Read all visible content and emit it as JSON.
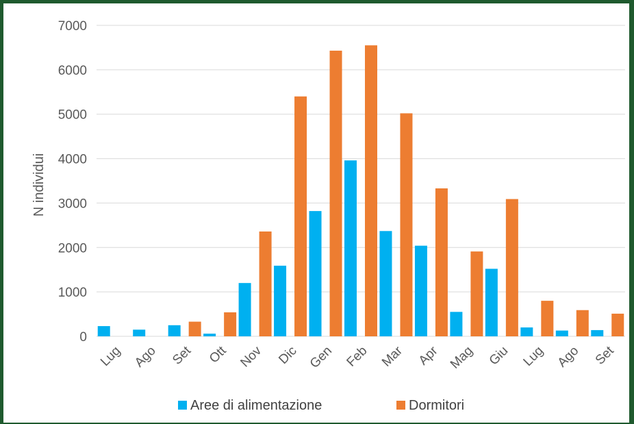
{
  "chart_data": {
    "type": "bar",
    "title": "",
    "xlabel": "",
    "ylabel": "N individui",
    "ylim": [
      0,
      7000
    ],
    "yticks": [
      0,
      1000,
      2000,
      3000,
      4000,
      5000,
      6000,
      7000
    ],
    "grid": true,
    "legend_position": "bottom",
    "categories": [
      "Lug",
      "Ago",
      "Set",
      "Ott",
      "Nov",
      "Dic",
      "Gen",
      "Feb",
      "Mar",
      "Apr",
      "Mag",
      "Giu",
      "Lug",
      "Ago",
      "Set"
    ],
    "series": [
      {
        "name": "Aree di alimentazione",
        "color": "#00b0f0",
        "values": [
          230,
          150,
          250,
          60,
          1200,
          1590,
          2820,
          3960,
          2370,
          2040,
          550,
          1520,
          200,
          130,
          140
        ]
      },
      {
        "name": "Dormitori",
        "color": "#ed7d31",
        "values": [
          0,
          0,
          330,
          540,
          2360,
          5400,
          6430,
          6550,
          5020,
          3330,
          1910,
          3090,
          800,
          590,
          510
        ]
      }
    ]
  }
}
